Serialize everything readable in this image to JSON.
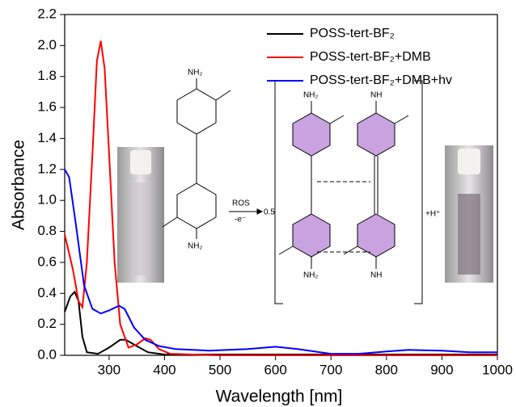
{
  "chart_data": {
    "type": "line",
    "xlabel": "Wavelength [nm]",
    "ylabel": "Absorbance",
    "xlim": [
      220,
      1000
    ],
    "ylim": [
      0,
      2.2
    ],
    "xticks": [
      300,
      400,
      500,
      600,
      700,
      800,
      900,
      1000
    ],
    "yticks": [
      {
        "value": 0,
        "label": "0.0"
      },
      0.2,
      0.4,
      0.6,
      0.8,
      {
        "value": 1,
        "label": "1.0"
      },
      1.2,
      1.4,
      1.6,
      1.8,
      {
        "value": 2,
        "label": "2.0"
      },
      2.2
    ],
    "legend": "upper right",
    "series": [
      {
        "name": "POSS-tert-BF₂",
        "color": "#000000",
        "x": [
          220,
          230,
          238,
          245,
          252,
          260,
          280,
          300,
          320,
          330,
          345,
          370,
          400,
          500,
          1000
        ],
        "values": [
          0.28,
          0.38,
          0.41,
          0.35,
          0.12,
          0.02,
          0.01,
          0.05,
          0.1,
          0.1,
          0.07,
          0.02,
          0.005,
          0.005,
          0.005
        ]
      },
      {
        "name": "POSS-tert-BF₂+DMB",
        "color": "#ff0000",
        "x": [
          220,
          235,
          245,
          252,
          260,
          270,
          278,
          285,
          292,
          300,
          310,
          320,
          335,
          350,
          365,
          375,
          390,
          410,
          500,
          1000
        ],
        "values": [
          0.78,
          0.55,
          0.35,
          0.31,
          0.6,
          1.3,
          1.9,
          2.03,
          1.85,
          1.3,
          0.6,
          0.2,
          0.05,
          0.07,
          0.11,
          0.1,
          0.04,
          0.01,
          0.0,
          0.0
        ]
      },
      {
        "name": "POSS-tert-BF₂+DMB+hv",
        "color": "#0000ff",
        "x": [
          220,
          228,
          240,
          255,
          270,
          285,
          300,
          318,
          328,
          345,
          365,
          390,
          420,
          480,
          550,
          600,
          640,
          700,
          750,
          800,
          840,
          900,
          950,
          1000
        ],
        "values": [
          1.2,
          1.15,
          0.85,
          0.45,
          0.3,
          0.27,
          0.29,
          0.32,
          0.3,
          0.18,
          0.1,
          0.06,
          0.04,
          0.03,
          0.04,
          0.055,
          0.04,
          0.01,
          0.01,
          0.025,
          0.035,
          0.03,
          0.02,
          0.02
        ]
      }
    ],
    "annotations": [
      "NH₂",
      "NH₂",
      "ROS",
      "-e⁻",
      "0.5",
      "NH₂",
      "NH₂",
      "NH",
      "NH",
      "+H⁺"
    ]
  }
}
